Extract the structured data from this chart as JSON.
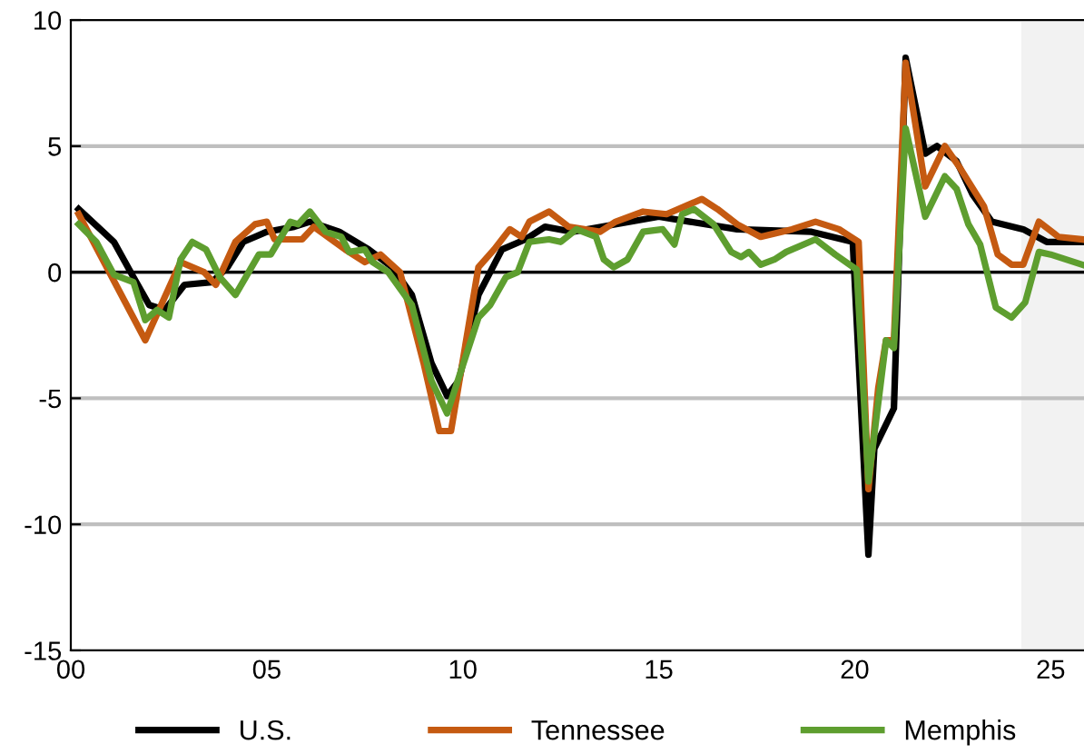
{
  "chart_data": {
    "type": "line",
    "xlim": [
      2000,
      2025.85
    ],
    "ylim": [
      -15,
      10
    ],
    "xticks": [
      {
        "value": 2000,
        "label": "00"
      },
      {
        "value": 2005,
        "label": "05"
      },
      {
        "value": 2010,
        "label": "10"
      },
      {
        "value": 2015,
        "label": "15"
      },
      {
        "value": 2020,
        "label": "20"
      },
      {
        "value": 2025,
        "label": "25"
      }
    ],
    "yticks": [
      -15,
      -10,
      -5,
      0,
      5,
      10
    ],
    "grid": "y",
    "legend": "bottom",
    "line_style": "solid",
    "marker": "none",
    "ref_lines": [
      {
        "axis": "y",
        "value": 0,
        "color": "#000000"
      }
    ],
    "bands": [
      {
        "axis": "x",
        "from": 2024.25,
        "to": 2025.85,
        "color": "#f2f2f2"
      }
    ],
    "series": [
      {
        "name": "U.S.",
        "color": "#000000",
        "x": [
          2000.2,
          2001.1,
          2001.6,
          2002.0,
          2002.4,
          2002.9,
          2003.6,
          2004.0,
          2004.4,
          2005.0,
          2005.7,
          2006.1,
          2006.85,
          2007.6,
          2008.2,
          2008.7,
          2009.2,
          2009.6,
          2009.9,
          2010.4,
          2011.0,
          2011.6,
          2012.1,
          2012.8,
          2015.0,
          2015.8,
          2017.0,
          2018.9,
          2019.95,
          2020.35,
          2020.5,
          2021.0,
          2021.3,
          2021.8,
          2022.1,
          2022.6,
          2023.0,
          2023.5,
          2024.3,
          2024.9,
          2025.8
        ],
        "values": [
          2.5,
          1.2,
          -0.2,
          -1.3,
          -1.5,
          -0.5,
          -0.4,
          0.2,
          1.2,
          1.6,
          1.8,
          2.0,
          1.6,
          0.9,
          0.2,
          -0.9,
          -3.6,
          -4.9,
          -4.3,
          -0.9,
          0.9,
          1.3,
          1.8,
          1.6,
          2.2,
          2.0,
          1.7,
          1.6,
          1.2,
          -11.2,
          -7.0,
          -5.4,
          8.5,
          4.7,
          5.0,
          4.4,
          3.1,
          2.0,
          1.7,
          1.2,
          1.2
        ]
      },
      {
        "name": "Tennessee",
        "color": "#c55a11",
        "x": [
          2000.2,
          2001.9,
          2002.8,
          2003.4,
          2003.7,
          2004.2,
          2004.7,
          2005.0,
          2005.2,
          2005.9,
          2006.2,
          2007.0,
          2007.5,
          2007.9,
          2008.4,
          2009.0,
          2009.4,
          2009.7,
          2010.4,
          2010.8,
          2011.2,
          2011.5,
          2011.7,
          2012.2,
          2012.7,
          2013.5,
          2013.9,
          2014.6,
          2015.2,
          2016.1,
          2016.5,
          2017.0,
          2017.6,
          2018.4,
          2019.0,
          2019.6,
          2020.1,
          2020.35,
          2020.6,
          2020.8,
          2021.0,
          2021.3,
          2021.8,
          2022.3,
          2022.7,
          2023.3,
          2023.65,
          2024.0,
          2024.3,
          2024.7,
          2025.2,
          2025.8
        ],
        "values": [
          2.3,
          -2.7,
          0.4,
          0.0,
          -0.5,
          1.2,
          1.9,
          2.0,
          1.3,
          1.3,
          1.8,
          0.9,
          0.4,
          0.7,
          0.0,
          -3.6,
          -6.3,
          -6.3,
          0.2,
          0.9,
          1.7,
          1.4,
          2.0,
          2.4,
          1.8,
          1.6,
          2.0,
          2.4,
          2.3,
          2.9,
          2.5,
          1.9,
          1.4,
          1.7,
          2.0,
          1.7,
          1.2,
          -8.6,
          -4.6,
          -2.7,
          -2.7,
          8.3,
          3.4,
          5.0,
          4.1,
          2.6,
          0.7,
          0.3,
          0.3,
          2.0,
          1.4,
          1.3
        ]
      },
      {
        "name": "Memphis",
        "color": "#5e9e2f",
        "x": [
          2000.2,
          2000.65,
          2001.1,
          2001.6,
          2001.9,
          2002.2,
          2002.5,
          2002.8,
          2003.1,
          2003.45,
          2003.8,
          2004.2,
          2004.8,
          2005.1,
          2005.6,
          2005.8,
          2006.1,
          2006.5,
          2006.9,
          2007.1,
          2007.5,
          2007.7,
          2008.1,
          2008.7,
          2009.2,
          2009.6,
          2010.4,
          2010.7,
          2011.1,
          2011.4,
          2011.7,
          2012.2,
          2012.5,
          2012.9,
          2013.4,
          2013.6,
          2013.85,
          2014.2,
          2014.6,
          2015.1,
          2015.4,
          2015.6,
          2015.9,
          2016.4,
          2016.85,
          2017.1,
          2017.3,
          2017.6,
          2017.95,
          2018.25,
          2019.0,
          2019.5,
          2020.05,
          2020.35,
          2020.8,
          2021.0,
          2021.3,
          2021.8,
          2022.3,
          2022.6,
          2022.9,
          2023.2,
          2023.6,
          2024.0,
          2024.35,
          2024.7,
          2025.0,
          2025.8
        ],
        "values": [
          1.9,
          1.2,
          -0.1,
          -0.4,
          -1.9,
          -1.5,
          -1.8,
          0.5,
          1.2,
          0.9,
          -0.2,
          -0.9,
          0.7,
          0.7,
          2.0,
          1.9,
          2.4,
          1.6,
          1.4,
          0.8,
          0.9,
          0.4,
          0.0,
          -1.3,
          -4.3,
          -5.6,
          -1.8,
          -1.3,
          -0.2,
          0.0,
          1.2,
          1.3,
          1.2,
          1.7,
          1.4,
          0.5,
          0.2,
          0.5,
          1.6,
          1.7,
          1.1,
          2.3,
          2.5,
          1.9,
          0.8,
          0.6,
          0.8,
          0.3,
          0.5,
          0.8,
          1.3,
          0.7,
          0.1,
          -8.3,
          -2.7,
          -3.0,
          5.7,
          2.2,
          3.8,
          3.3,
          1.9,
          1.1,
          -1.4,
          -1.8,
          -1.2,
          0.8,
          0.7,
          0.3
        ]
      }
    ]
  }
}
